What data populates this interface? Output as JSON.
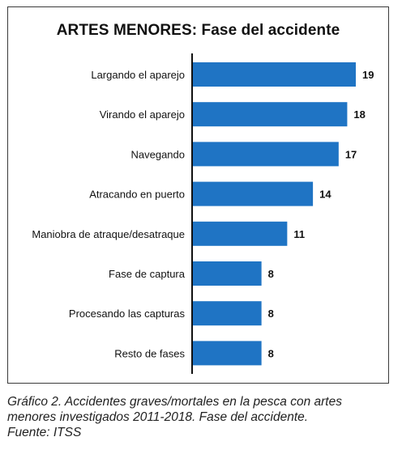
{
  "chart_data": {
    "type": "bar",
    "orientation": "horizontal",
    "title": "ARTES MENORES: Fase del accidente",
    "categories": [
      "Largando el aparejo",
      "Virando el aparejo",
      "Navegando",
      "Atracando en puerto",
      "Maniobra de atraque/desatraque",
      "Fase de captura",
      "Procesando las capturas",
      "Resto de fases"
    ],
    "values": [
      19,
      18,
      17,
      14,
      11,
      8,
      8,
      8
    ],
    "xlim": [
      0,
      19
    ],
    "grid": false,
    "legend": "none",
    "bar_color": "#1f74c4"
  },
  "caption": {
    "line1": "Gráfico 2. Accidentes graves/mortales en la pesca con artes",
    "line2": "menores investigados 2011-2018. Fase del accidente.",
    "line3": "Fuente: ITSS"
  }
}
